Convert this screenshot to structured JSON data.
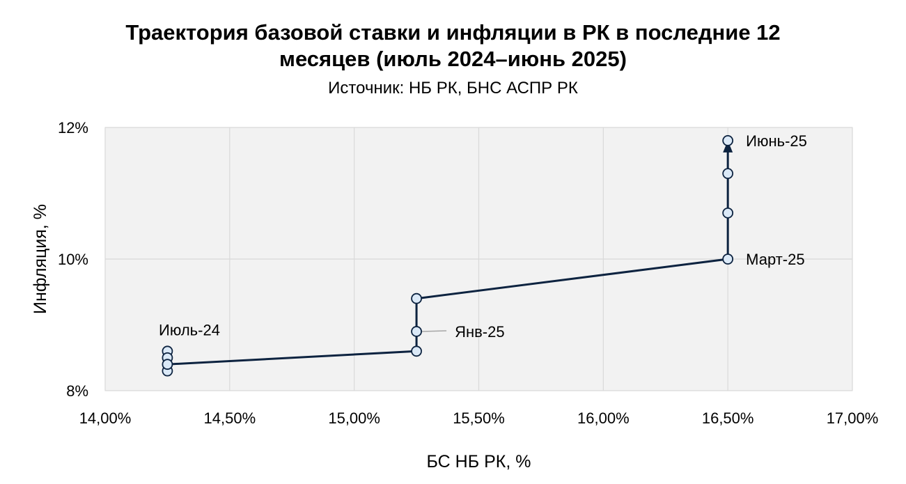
{
  "chart_data": {
    "type": "scatter",
    "title_line1": "Траектория базовой ставки и инфляции в РК в последние 12",
    "title_line2": "месяцев (июль 2024–июнь 2025)",
    "subtitle": "Источник: НБ РК, БНС АСПР РК",
    "xlabel": "БС НБ РК, %",
    "ylabel": "Инфляция, %",
    "xlim": [
      14.0,
      17.0
    ],
    "ylim": [
      8,
      12
    ],
    "x_ticks": [
      {
        "value": 14.0,
        "label": "14,00%"
      },
      {
        "value": 14.5,
        "label": "14,50%"
      },
      {
        "value": 15.0,
        "label": "15,00%"
      },
      {
        "value": 15.5,
        "label": "15,50%"
      },
      {
        "value": 16.0,
        "label": "16,00%"
      },
      {
        "value": 16.5,
        "label": "16,50%"
      },
      {
        "value": 17.0,
        "label": "17,00%"
      }
    ],
    "y_ticks": [
      {
        "value": 8,
        "label": "8%"
      },
      {
        "value": 10,
        "label": "10%"
      },
      {
        "value": 12,
        "label": "12%"
      }
    ],
    "grid": true,
    "points": [
      {
        "x": 14.25,
        "y": 8.6
      },
      {
        "x": 14.25,
        "y": 8.5
      },
      {
        "x": 14.25,
        "y": 8.3
      },
      {
        "x": 14.25,
        "y": 8.4
      },
      {
        "x": 15.25,
        "y": 8.6
      },
      {
        "x": 15.25,
        "y": 8.9
      },
      {
        "x": 15.25,
        "y": 9.4
      },
      {
        "x": 16.5,
        "y": 10.0
      },
      {
        "x": 16.5,
        "y": 10.7
      },
      {
        "x": 16.5,
        "y": 11.3
      },
      {
        "x": 16.5,
        "y": 11.8
      }
    ],
    "path": [
      {
        "x": 14.25,
        "y": 8.4
      },
      {
        "x": 15.25,
        "y": 8.6
      },
      {
        "x": 15.25,
        "y": 9.4
      },
      {
        "x": 16.5,
        "y": 10.0
      },
      {
        "x": 16.5,
        "y": 11.8
      }
    ],
    "arrow_end": {
      "x": 16.5,
      "y": 11.8
    },
    "annotations": [
      {
        "text": "Июль-24",
        "x": 14.25,
        "y": 8.6,
        "position": "above",
        "leader": false
      },
      {
        "text": "Янв-25",
        "x": 15.25,
        "y": 8.9,
        "position": "right-far",
        "leader": true
      },
      {
        "text": "Март-25",
        "x": 16.5,
        "y": 10.0,
        "position": "right",
        "leader": false
      },
      {
        "text": "Июнь-25",
        "x": 16.5,
        "y": 11.8,
        "position": "right",
        "leader": false
      }
    ],
    "colors": {
      "line": "#0d2340",
      "marker_fill": "#dbe9f7",
      "marker_stroke": "#0d2340",
      "plot_background": "#f2f2f2",
      "grid": "#d9d9d9",
      "leader": "#a6a6a6"
    }
  }
}
